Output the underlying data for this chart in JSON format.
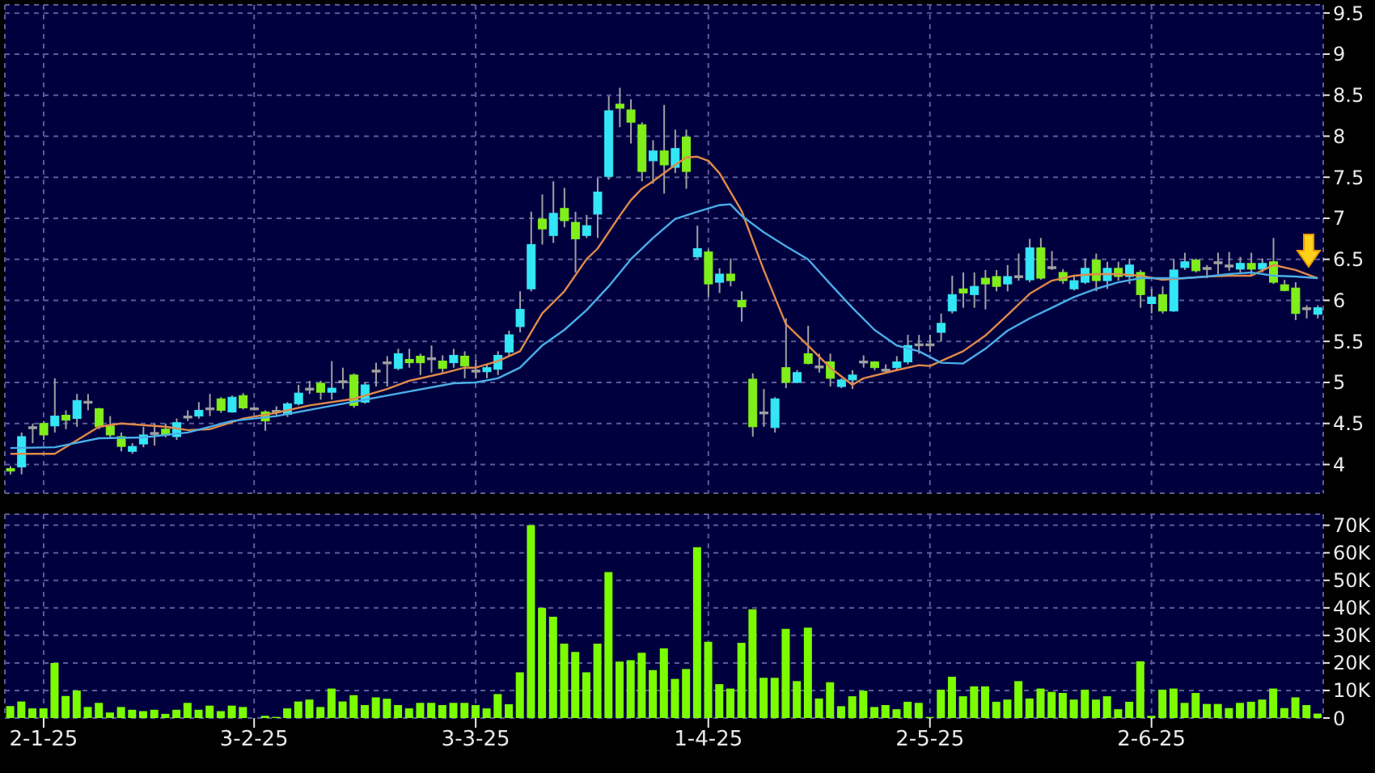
{
  "chart_data": [
    {
      "type": "candlestick",
      "categories": [
        null,
        null,
        null,
        null,
        null,
        null,
        null,
        null,
        null,
        null,
        null,
        null,
        null,
        null,
        null,
        null,
        null,
        null,
        null,
        null,
        null,
        null,
        null,
        null,
        null,
        null,
        null,
        null,
        null,
        null,
        null,
        null,
        null,
        null,
        null,
        null,
        null,
        null,
        null,
        null,
        null,
        null,
        null,
        null,
        null,
        null,
        null,
        null,
        null,
        null,
        null,
        null,
        null,
        null,
        null,
        null,
        null,
        null,
        null,
        null,
        null,
        null,
        null,
        null,
        null,
        null,
        null,
        null,
        null,
        null,
        null,
        null,
        null,
        null,
        null,
        null,
        null,
        null,
        null,
        null,
        null,
        null,
        null,
        null,
        null,
        null,
        null,
        null,
        null,
        null,
        null,
        null,
        null,
        null,
        null,
        null,
        null,
        null,
        null,
        null,
        null,
        null,
        null,
        null,
        null,
        null,
        null,
        null,
        null,
        null,
        null,
        null,
        null,
        null,
        null,
        null,
        null,
        null,
        null
      ],
      "ohlc": [
        [
          3.95,
          3.98,
          3.88,
          3.92
        ],
        [
          3.97,
          4.39,
          3.88,
          4.34
        ],
        [
          4.46,
          4.5,
          4.26,
          4.46
        ],
        [
          4.5,
          4.53,
          4.3,
          4.36
        ],
        [
          4.47,
          5.05,
          4.39,
          4.59
        ],
        [
          4.6,
          4.66,
          4.43,
          4.54
        ],
        [
          4.56,
          4.86,
          4.46,
          4.78
        ],
        [
          4.77,
          4.86,
          4.66,
          4.77
        ],
        [
          4.68,
          4.69,
          4.43,
          4.46
        ],
        [
          4.47,
          4.59,
          4.33,
          4.36
        ],
        [
          4.34,
          4.39,
          4.16,
          4.22
        ],
        [
          4.16,
          4.26,
          4.13,
          4.22
        ],
        [
          4.25,
          4.46,
          4.21,
          4.36
        ],
        [
          4.39,
          4.5,
          4.23,
          4.39
        ],
        [
          4.43,
          4.5,
          4.33,
          4.36
        ],
        [
          4.34,
          4.56,
          4.3,
          4.51
        ],
        [
          4.59,
          4.66,
          4.53,
          4.59
        ],
        [
          4.59,
          4.76,
          4.56,
          4.66
        ],
        [
          4.69,
          4.86,
          4.59,
          4.69
        ],
        [
          4.8,
          4.82,
          4.63,
          4.66
        ],
        [
          4.64,
          4.84,
          4.63,
          4.82
        ],
        [
          4.84,
          4.87,
          4.67,
          4.69
        ],
        [
          4.69,
          4.7,
          4.66,
          4.69
        ],
        [
          4.64,
          4.66,
          4.41,
          4.53
        ],
        [
          4.66,
          4.71,
          4.59,
          4.66
        ],
        [
          4.61,
          4.76,
          4.58,
          4.74
        ],
        [
          4.74,
          4.97,
          4.72,
          4.87
        ],
        [
          4.93,
          5.02,
          4.86,
          4.93
        ],
        [
          4.99,
          5.02,
          4.79,
          4.88
        ],
        [
          4.88,
          5.26,
          4.79,
          4.93
        ],
        [
          5.02,
          5.18,
          4.92,
          5.02
        ],
        [
          5.09,
          5.11,
          4.69,
          4.72
        ],
        [
          4.76,
          5.0,
          4.74,
          4.97
        ],
        [
          5.15,
          5.24,
          4.95,
          5.15
        ],
        [
          5.25,
          5.32,
          4.95,
          5.25
        ],
        [
          5.17,
          5.41,
          5.15,
          5.35
        ],
        [
          5.28,
          5.41,
          5.18,
          5.24
        ],
        [
          5.32,
          5.35,
          5.09,
          5.24
        ],
        [
          5.3,
          5.45,
          5.12,
          5.3
        ],
        [
          5.26,
          5.33,
          5.12,
          5.17
        ],
        [
          5.24,
          5.41,
          5.18,
          5.33
        ],
        [
          5.32,
          5.38,
          5.05,
          5.2
        ],
        [
          5.15,
          5.28,
          5.05,
          5.15
        ],
        [
          5.13,
          5.22,
          5.05,
          5.18
        ],
        [
          5.16,
          5.38,
          5.09,
          5.33
        ],
        [
          5.37,
          5.63,
          5.32,
          5.58
        ],
        [
          5.68,
          6.11,
          5.61,
          5.89
        ],
        [
          6.14,
          7.08,
          6.11,
          6.68
        ],
        [
          6.99,
          7.29,
          6.68,
          6.87
        ],
        [
          6.79,
          7.45,
          6.7,
          7.06
        ],
        [
          7.12,
          7.37,
          6.89,
          6.97
        ],
        [
          6.95,
          7.08,
          6.34,
          6.75
        ],
        [
          6.79,
          7.04,
          6.76,
          6.91
        ],
        [
          7.05,
          7.49,
          6.76,
          7.32
        ],
        [
          7.51,
          8.49,
          7.47,
          8.31
        ],
        [
          8.39,
          8.59,
          8.11,
          8.34
        ],
        [
          8.32,
          8.45,
          7.91,
          8.17
        ],
        [
          8.14,
          8.17,
          7.45,
          7.57
        ],
        [
          7.7,
          7.95,
          7.42,
          7.82
        ],
        [
          7.82,
          8.38,
          7.3,
          7.65
        ],
        [
          7.62,
          8.08,
          7.55,
          7.85
        ],
        [
          7.99,
          8.08,
          7.36,
          7.57
        ],
        [
          6.53,
          6.91,
          6.51,
          6.63
        ],
        [
          6.59,
          6.62,
          6.04,
          6.2
        ],
        [
          6.22,
          6.39,
          6.09,
          6.32
        ],
        [
          6.32,
          6.51,
          6.17,
          6.24
        ],
        [
          6.0,
          6.11,
          5.74,
          5.92
        ],
        [
          5.04,
          5.11,
          4.34,
          4.46
        ],
        [
          4.64,
          4.92,
          4.46,
          4.64
        ],
        [
          4.45,
          4.82,
          4.39,
          4.8
        ],
        [
          5.18,
          5.78,
          4.93,
          5.0
        ],
        [
          5.0,
          5.15,
          4.99,
          5.12
        ],
        [
          5.35,
          5.69,
          5.22,
          5.23
        ],
        [
          5.2,
          5.35,
          5.12,
          5.2
        ],
        [
          5.25,
          5.35,
          4.95,
          5.05
        ],
        [
          4.95,
          5.05,
          4.93,
          5.03
        ],
        [
          5.03,
          5.15,
          4.92,
          5.09
        ],
        [
          5.26,
          5.33,
          5.18,
          5.26
        ],
        [
          5.25,
          5.26,
          5.15,
          5.18
        ],
        [
          5.16,
          5.22,
          5.12,
          5.16
        ],
        [
          5.18,
          5.32,
          5.15,
          5.25
        ],
        [
          5.25,
          5.58,
          5.22,
          5.45
        ],
        [
          5.47,
          5.58,
          5.35,
          5.47
        ],
        [
          5.47,
          5.58,
          5.37,
          5.47
        ],
        [
          5.61,
          5.84,
          5.5,
          5.72
        ],
        [
          5.87,
          6.3,
          5.84,
          6.07
        ],
        [
          6.14,
          6.34,
          5.91,
          6.09
        ],
        [
          6.07,
          6.34,
          5.91,
          6.17
        ],
        [
          6.27,
          6.37,
          5.89,
          6.2
        ],
        [
          6.29,
          6.37,
          6.11,
          6.17
        ],
        [
          6.2,
          6.43,
          6.11,
          6.29
        ],
        [
          6.3,
          6.57,
          6.24,
          6.3
        ],
        [
          6.25,
          6.75,
          6.22,
          6.64
        ],
        [
          6.64,
          6.76,
          6.25,
          6.27
        ],
        [
          6.41,
          6.6,
          6.37,
          6.41
        ],
        [
          6.34,
          6.38,
          6.2,
          6.24
        ],
        [
          6.14,
          6.3,
          6.12,
          6.24
        ],
        [
          6.22,
          6.51,
          6.2,
          6.39
        ],
        [
          6.49,
          6.57,
          6.11,
          6.24
        ],
        [
          6.24,
          6.47,
          6.14,
          6.39
        ],
        [
          6.39,
          6.47,
          6.24,
          6.29
        ],
        [
          6.29,
          6.51,
          6.2,
          6.43
        ],
        [
          6.34,
          6.37,
          5.91,
          6.07
        ],
        [
          5.96,
          6.14,
          5.84,
          6.04
        ],
        [
          6.07,
          6.17,
          5.84,
          5.87
        ],
        [
          5.87,
          6.5,
          5.86,
          6.37
        ],
        [
          6.4,
          6.58,
          6.37,
          6.47
        ],
        [
          6.49,
          6.51,
          6.34,
          6.36
        ],
        [
          6.4,
          6.43,
          6.27,
          6.4
        ],
        [
          6.47,
          6.58,
          6.32,
          6.47
        ],
        [
          6.43,
          6.59,
          6.36,
          6.43
        ],
        [
          6.38,
          6.53,
          6.34,
          6.45
        ],
        [
          6.45,
          6.58,
          6.3,
          6.38
        ],
        [
          6.38,
          6.51,
          6.34,
          6.45
        ],
        [
          6.47,
          6.76,
          6.2,
          6.22
        ],
        [
          6.19,
          6.25,
          6.11,
          6.12
        ],
        [
          6.15,
          6.22,
          5.76,
          5.84
        ],
        [
          5.91,
          5.94,
          5.78,
          5.91
        ],
        [
          5.83,
          5.94,
          5.78,
          5.91
        ]
      ],
      "colors": [
        "#80ee1a",
        "#33e6f5",
        "#a0a0a0",
        "#80ee1a",
        "#33e6f5",
        "#80ee1a",
        "#33e6f5",
        "#a0a0a0",
        "#80ee1a",
        "#80ee1a",
        "#80ee1a",
        "#33e6f5",
        "#33e6f5",
        "#a0a0a0",
        "#80ee1a",
        "#33e6f5",
        "#a0a0a0",
        "#33e6f5",
        "#a0a0a0",
        "#80ee1a",
        "#33e6f5",
        "#80ee1a",
        "#a0a0a0",
        "#80ee1a",
        "#a0a0a0",
        "#33e6f5",
        "#33e6f5",
        "#a0a0a0",
        "#80ee1a",
        "#33e6f5",
        "#a0a0a0",
        "#80ee1a",
        "#33e6f5",
        "#a0a0a0",
        "#a0a0a0",
        "#33e6f5",
        "#80ee1a",
        "#80ee1a",
        "#a0a0a0",
        "#80ee1a",
        "#33e6f5",
        "#80ee1a",
        "#a0a0a0",
        "#33e6f5",
        "#33e6f5",
        "#33e6f5",
        "#33e6f5",
        "#33e6f5",
        "#80ee1a",
        "#33e6f5",
        "#80ee1a",
        "#80ee1a",
        "#33e6f5",
        "#33e6f5",
        "#33e6f5",
        "#80ee1a",
        "#80ee1a",
        "#80ee1a",
        "#33e6f5",
        "#80ee1a",
        "#33e6f5",
        "#80ee1a",
        "#33e6f5",
        "#80ee1a",
        "#33e6f5",
        "#80ee1a",
        "#80ee1a",
        "#80ee1a",
        "#a0a0a0",
        "#33e6f5",
        "#80ee1a",
        "#33e6f5",
        "#80ee1a",
        "#a0a0a0",
        "#80ee1a",
        "#33e6f5",
        "#33e6f5",
        "#a0a0a0",
        "#80ee1a",
        "#a0a0a0",
        "#33e6f5",
        "#33e6f5",
        "#a0a0a0",
        "#a0a0a0",
        "#33e6f5",
        "#33e6f5",
        "#80ee1a",
        "#33e6f5",
        "#80ee1a",
        "#80ee1a",
        "#33e6f5",
        "#a0a0a0",
        "#33e6f5",
        "#80ee1a",
        "#a0a0a0",
        "#80ee1a",
        "#33e6f5",
        "#33e6f5",
        "#80ee1a",
        "#33e6f5",
        "#80ee1a",
        "#33e6f5",
        "#80ee1a",
        "#33e6f5",
        "#80ee1a",
        "#33e6f5",
        "#33e6f5",
        "#80ee1a",
        "#a0a0a0",
        "#a0a0a0",
        "#a0a0a0",
        "#33e6f5",
        "#80ee1a",
        "#33e6f5",
        "#80ee1a",
        "#80ee1a",
        "#80ee1a",
        "#a0a0a0",
        "#33e6f5"
      ],
      "series": [
        {
          "type": "line",
          "color": "#e08a4a",
          "values": [
            4.13,
            null,
            null,
            null,
            4.13,
            null,
            null,
            null,
            4.46,
            null,
            4.5,
            null,
            null,
            null,
            4.46,
            null,
            4.42,
            null,
            4.43,
            null,
            null,
            4.56,
            null,
            null,
            4.63,
            null,
            null,
            4.72,
            null,
            null,
            null,
            4.8,
            null,
            null,
            4.92,
            null,
            5.02,
            null,
            null,
            5.11,
            null,
            5.18,
            5.18,
            null,
            5.26,
            null,
            5.38,
            null,
            5.84,
            null,
            6.11,
            null,
            6.5,
            6.63,
            null,
            7.03,
            7.22,
            7.36,
            7.45,
            null,
            7.65,
            7.74,
            7.75,
            7.7,
            7.55,
            null,
            7.09,
            null,
            6.37,
            null,
            5.71,
            null,
            5.45,
            null,
            5.18,
            null,
            4.97,
            5.05,
            null,
            null,
            5.15,
            null,
            5.21,
            5.2,
            null,
            null,
            5.38,
            null,
            5.57,
            null,
            5.82,
            null,
            6.08,
            null,
            6.24,
            null,
            6.3,
            null,
            6.32,
            null,
            6.32,
            null,
            6.3,
            null,
            6.25,
            null,
            6.27,
            null,
            6.29,
            null,
            6.3,
            null,
            6.3,
            null,
            6.43,
            null,
            6.37,
            null,
            6.27
          ]
        },
        {
          "type": "line",
          "color": "#4aaee8",
          "values": [
            4.2,
            null,
            null,
            null,
            4.21,
            null,
            null,
            null,
            4.32,
            null,
            null,
            null,
            4.33,
            null,
            null,
            null,
            4.39,
            null,
            null,
            null,
            4.53,
            null,
            null,
            null,
            4.59,
            null,
            null,
            null,
            4.69,
            null,
            null,
            null,
            4.79,
            null,
            null,
            null,
            4.89,
            null,
            null,
            null,
            4.99,
            null,
            5.0,
            null,
            5.05,
            null,
            5.18,
            null,
            5.45,
            null,
            5.64,
            null,
            5.88,
            null,
            6.17,
            null,
            6.5,
            null,
            6.76,
            null,
            6.99,
            null,
            7.08,
            null,
            7.16,
            7.17,
            7.03,
            null,
            6.83,
            null,
            6.66,
            null,
            6.5,
            null,
            6.2,
            null,
            5.91,
            null,
            5.64,
            null,
            5.45,
            null,
            5.38,
            null,
            5.24,
            null,
            5.23,
            null,
            5.41,
            null,
            5.63,
            null,
            5.78,
            null,
            5.91,
            null,
            6.04,
            null,
            6.14,
            null,
            6.22,
            null,
            6.27,
            null,
            6.27,
            null,
            6.27,
            null,
            6.29,
            null,
            6.32,
            null,
            6.34,
            null,
            6.3,
            null,
            6.29,
            null,
            6.27
          ]
        }
      ],
      "ylim": [
        3.65,
        9.6
      ],
      "yticks": [
        4,
        4.5,
        5,
        5.5,
        6,
        6.5,
        7,
        7.5,
        8,
        8.5,
        9,
        9.5
      ],
      "grid": true,
      "tick_labels": "y"
    },
    {
      "type": "bar",
      "categories": [
        null,
        null,
        null,
        "2-1-25",
        null,
        null,
        null,
        null,
        null,
        null,
        null,
        null,
        null,
        null,
        null,
        null,
        null,
        null,
        null,
        null,
        null,
        null,
        "3-2-25",
        null,
        null,
        null,
        null,
        null,
        null,
        null,
        null,
        null,
        null,
        null,
        null,
        null,
        null,
        null,
        null,
        null,
        null,
        null,
        "3-3-25",
        null,
        null,
        null,
        null,
        null,
        null,
        null,
        null,
        null,
        null,
        null,
        null,
        null,
        null,
        null,
        null,
        null,
        null,
        null,
        null,
        "1-4-25",
        null,
        null,
        null,
        null,
        null,
        null,
        null,
        null,
        null,
        null,
        null,
        null,
        null,
        null,
        null,
        null,
        null,
        null,
        null,
        "2-5-25",
        null,
        null,
        null,
        null,
        null,
        null,
        null,
        null,
        null,
        null,
        null,
        null,
        null,
        null,
        null,
        null,
        null,
        null,
        null,
        "2-6-25",
        null,
        null,
        null,
        null,
        null,
        null,
        null,
        null,
        null,
        null,
        null,
        null,
        null,
        null,
        null
      ],
      "values": [
        4300,
        6000,
        3500,
        3500,
        20000,
        8000,
        10000,
        4000,
        5500,
        2000,
        4000,
        3000,
        2500,
        3000,
        1500,
        3000,
        5500,
        3000,
        4500,
        2500,
        4500,
        4000,
        null,
        800,
        400,
        3500,
        6000,
        6700,
        4000,
        10700,
        6000,
        8300,
        4700,
        7500,
        7000,
        4700,
        3500,
        5500,
        5500,
        4700,
        5500,
        5500,
        4700,
        3500,
        8700,
        5000,
        16600,
        70000,
        40000,
        36800,
        27000,
        24000,
        16600,
        27000,
        53000,
        20500,
        21000,
        23700,
        17400,
        25300,
        14200,
        17800,
        62000,
        27700,
        12300,
        10700,
        27300,
        39500,
        14600,
        14600,
        32400,
        13400,
        32800,
        7100,
        13000,
        4300,
        7900,
        9900,
        4000,
        4700,
        3200,
        5900,
        5500,
        400,
        10300,
        15000,
        7900,
        11500,
        11500,
        5900,
        6700,
        13400,
        7100,
        10700,
        9500,
        9100,
        6700,
        10300,
        6700,
        7900,
        3200,
        5900,
        20600,
        800,
        10300,
        10700,
        5500,
        9100,
        5100,
        5100,
        3600,
        5500,
        5900,
        6700,
        10700,
        3600,
        7500,
        4700,
        1600
      ],
      "color": "#7cfc00",
      "ylim": [
        0,
        74000
      ],
      "yticks": [
        {
          "value": 0,
          "label": "0"
        },
        {
          "value": 10000,
          "label": "10K"
        },
        {
          "value": 20000,
          "label": "20K"
        },
        {
          "value": 30000,
          "label": "30K"
        },
        {
          "value": 40000,
          "label": "40K"
        },
        {
          "value": 50000,
          "label": "50K"
        },
        {
          "value": 60000,
          "label": "60K"
        },
        {
          "value": 70000,
          "label": "70K"
        }
      ],
      "grid": true
    }
  ]
}
